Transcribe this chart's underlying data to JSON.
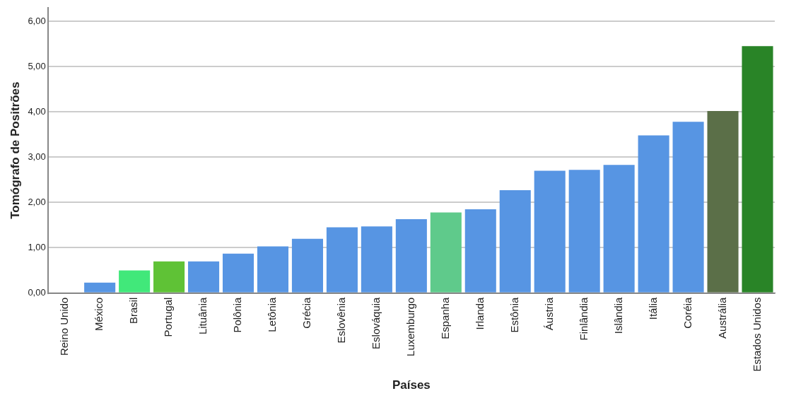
{
  "chart_data": {
    "type": "bar",
    "xlabel": "Países",
    "ylabel": "Tomógrafo de Positrões",
    "categories": [
      "Reino Unido",
      "México",
      "Brasil",
      "Portugal",
      "Lituânia",
      "Polônia",
      "Letônia",
      "Grécia",
      "Eslovênia",
      "Eslováquia",
      "Luxemburgo",
      "Espanha",
      "Irlanda",
      "Estônia",
      "Áustria",
      "Finlândia",
      "Islândia",
      "Itália",
      "Coréia",
      "Austrália",
      "Estados Unidos"
    ],
    "values": [
      null,
      0.23,
      0.5,
      0.7,
      0.7,
      0.87,
      1.03,
      1.2,
      1.45,
      1.47,
      1.63,
      1.78,
      1.85,
      2.27,
      2.7,
      2.72,
      2.83,
      3.48,
      3.78,
      4.02,
      5.45
    ],
    "colors": [
      "#5795e3",
      "#5795e3",
      "#41e87a",
      "#5fc236",
      "#5795e3",
      "#5795e3",
      "#5795e3",
      "#5795e3",
      "#5795e3",
      "#5795e3",
      "#5795e3",
      "#5fca8b",
      "#5795e3",
      "#5795e3",
      "#5795e3",
      "#5795e3",
      "#5795e3",
      "#5795e3",
      "#5795e3",
      "#5b6f48",
      "#298427"
    ],
    "ylim": [
      0,
      6.3
    ],
    "yticks": [
      {
        "value": 0,
        "label": "0,00"
      },
      {
        "value": 1,
        "label": "1,00"
      },
      {
        "value": 2,
        "label": "2,00"
      },
      {
        "value": 3,
        "label": "3,00"
      },
      {
        "value": 4,
        "label": "4,00"
      },
      {
        "value": 5,
        "label": "5,00"
      },
      {
        "value": 6,
        "label": "6,00"
      }
    ],
    "grid": "y"
  }
}
